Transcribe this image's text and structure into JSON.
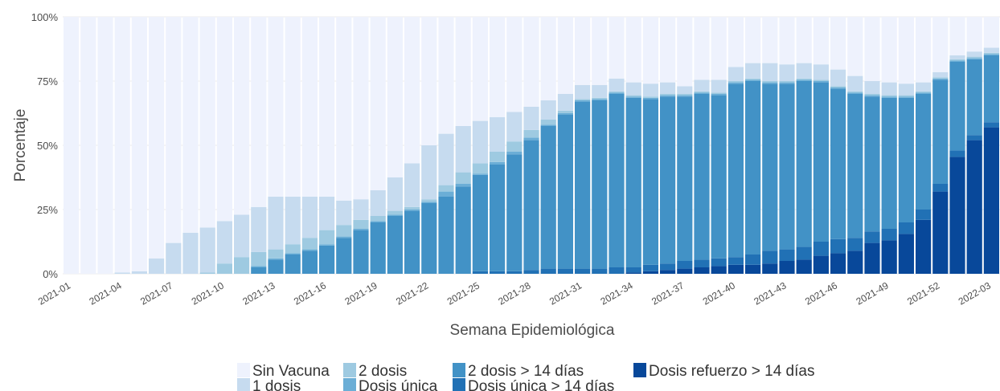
{
  "chart_data": {
    "type": "stacked_bar",
    "x_label": "Semana Epidemiológica",
    "y_label": "Porcentaje",
    "categories": [
      "2021-01",
      null,
      null,
      "2021-04",
      null,
      null,
      "2021-07",
      null,
      null,
      "2021-10",
      null,
      null,
      "2021-13",
      null,
      null,
      "2021-16",
      null,
      null,
      "2021-19",
      null,
      null,
      "2021-22",
      null,
      null,
      "2021-25",
      null,
      null,
      "2021-28",
      null,
      null,
      "2021-31",
      null,
      null,
      "2021-34",
      null,
      null,
      "2021-37",
      null,
      null,
      "2021-40",
      null,
      null,
      "2021-43",
      null,
      null,
      "2021-46",
      null,
      null,
      "2021-49",
      null,
      null,
      "2021-52",
      null,
      null,
      "2022-03"
    ],
    "ylim": [
      0,
      100
    ],
    "yticks": [
      {
        "value": 0,
        "label": "0%"
      },
      {
        "value": 25,
        "label": "25%"
      },
      {
        "value": 50,
        "label": "50%"
      },
      {
        "value": 75,
        "label": "75%"
      },
      {
        "value": 100,
        "label": "100%"
      }
    ],
    "grid": true,
    "legend": "bottom",
    "series": [
      {
        "name": "Sin Vacuna",
        "color": "#eef2fd",
        "values": [
          100,
          100,
          100,
          99.5,
          99,
          94,
          88,
          84,
          82,
          79.5,
          77,
          74,
          70,
          70,
          70,
          70,
          71.5,
          71,
          67.5,
          62.5,
          57,
          50,
          45.5,
          42.5,
          40.5,
          39,
          37,
          35,
          32.5,
          30,
          26.5,
          26.5,
          24,
          25.5,
          26,
          25.5,
          27,
          24.5,
          24.5,
          19.5,
          18,
          18,
          18.5,
          18,
          18.5,
          20.5,
          23,
          25,
          25.5,
          26,
          25.5,
          21.5,
          15,
          13.5,
          12
        ]
      },
      {
        "name": "1 dosis",
        "color": "#c6dbef",
        "values": [
          0,
          0,
          0,
          0.5,
          1,
          6,
          12,
          16,
          17.5,
          16.5,
          16.5,
          17.5,
          20.5,
          18.5,
          16,
          13,
          9.5,
          8,
          10,
          13,
          17,
          21,
          20,
          18,
          16.5,
          13.5,
          11.5,
          9,
          7.5,
          6.5,
          5.5,
          5,
          5,
          5,
          5,
          4.5,
          3,
          4.5,
          5,
          5.5,
          6,
          7,
          6.5,
          6,
          6,
          6.5,
          6,
          5,
          5,
          4.5,
          3.5,
          2,
          1.5,
          2,
          2
        ]
      },
      {
        "name": "2 dosis",
        "color": "#9ecae1",
        "values": [
          0,
          0,
          0,
          0,
          0,
          0,
          0,
          0,
          0.5,
          4,
          6.5,
          5.5,
          3.5,
          3.5,
          4.5,
          5.5,
          4.5,
          3.5,
          2,
          1.5,
          1,
          1,
          2.5,
          4.5,
          4,
          4,
          4,
          3,
          2,
          1,
          0.5,
          0.5,
          0.5,
          0.5,
          0.5,
          0.5,
          0.5,
          0.5,
          0.5,
          0.5,
          0.5,
          0.5,
          0.5,
          0.5,
          0.5,
          0.5,
          0.5,
          0.5,
          0.5,
          0.5,
          0.5,
          0.5,
          0.5,
          0.5,
          0.5
        ]
      },
      {
        "name": "Dosis única",
        "color": "#6baed6",
        "values": [
          0,
          0,
          0,
          0,
          0,
          0,
          0,
          0,
          0,
          0,
          0,
          0.5,
          0.5,
          0.5,
          0.5,
          0.5,
          0.5,
          0.5,
          0.5,
          0.5,
          0.5,
          0.5,
          2,
          1,
          0.5,
          1,
          1,
          1,
          0.5,
          0.5,
          0.5,
          0.5,
          0.5,
          0.5,
          0.5,
          0.5,
          0.5,
          0.5,
          0.5,
          0.5,
          0.5,
          0.5,
          0.5,
          0.5,
          0.5,
          0.5,
          0.5,
          0.5,
          0.5,
          0.5,
          0.5,
          0.5,
          0.5,
          0.5,
          0.5
        ]
      },
      {
        "name": "2 dosis > 14 días",
        "color": "#4292c6",
        "values": [
          0,
          0,
          0,
          0,
          0,
          0,
          0,
          0,
          0,
          0,
          0,
          2.5,
          5.5,
          7.5,
          9,
          11,
          14,
          17,
          20,
          22.5,
          24.5,
          27.5,
          30,
          34,
          37.5,
          41.5,
          45.5,
          50.5,
          55.5,
          60,
          65,
          65.5,
          67.5,
          66,
          64.5,
          65,
          64,
          64.5,
          63.5,
          67.5,
          67.5,
          65,
          64.5,
          64.5,
          62,
          58.5,
          56,
          52.5,
          51,
          48.5,
          45,
          40.5,
          34.5,
          29.5,
          26
        ]
      },
      {
        "name": "Dosis única > 14 días",
        "color": "#2171b5",
        "values": [
          0,
          0,
          0,
          0,
          0,
          0,
          0,
          0,
          0,
          0,
          0,
          0,
          0,
          0,
          0,
          0,
          0,
          0,
          0,
          0,
          0,
          0,
          0,
          0,
          1,
          1,
          1,
          1.5,
          2,
          2,
          2,
          2,
          2.5,
          2,
          2.5,
          2.5,
          3,
          3,
          3,
          3,
          4,
          5,
          4.5,
          5,
          5.5,
          5.5,
          5,
          4.5,
          4.5,
          4.5,
          4,
          3,
          2.5,
          2,
          2
        ]
      },
      {
        "name": "Dosis refuerzo > 14 días",
        "color": "#08489a",
        "values": [
          0,
          0,
          0,
          0,
          0,
          0,
          0,
          0,
          0,
          0,
          0,
          0,
          0,
          0,
          0,
          0,
          0,
          0,
          0,
          0,
          0,
          0,
          0,
          0,
          0,
          0,
          0,
          0,
          0,
          0,
          0,
          0,
          0,
          0.5,
          1,
          1.5,
          2,
          2.5,
          3,
          3.5,
          3.5,
          4,
          5,
          5.5,
          7,
          8,
          9,
          12,
          13,
          15.5,
          21,
          32,
          45.5,
          52,
          57
        ]
      }
    ]
  }
}
